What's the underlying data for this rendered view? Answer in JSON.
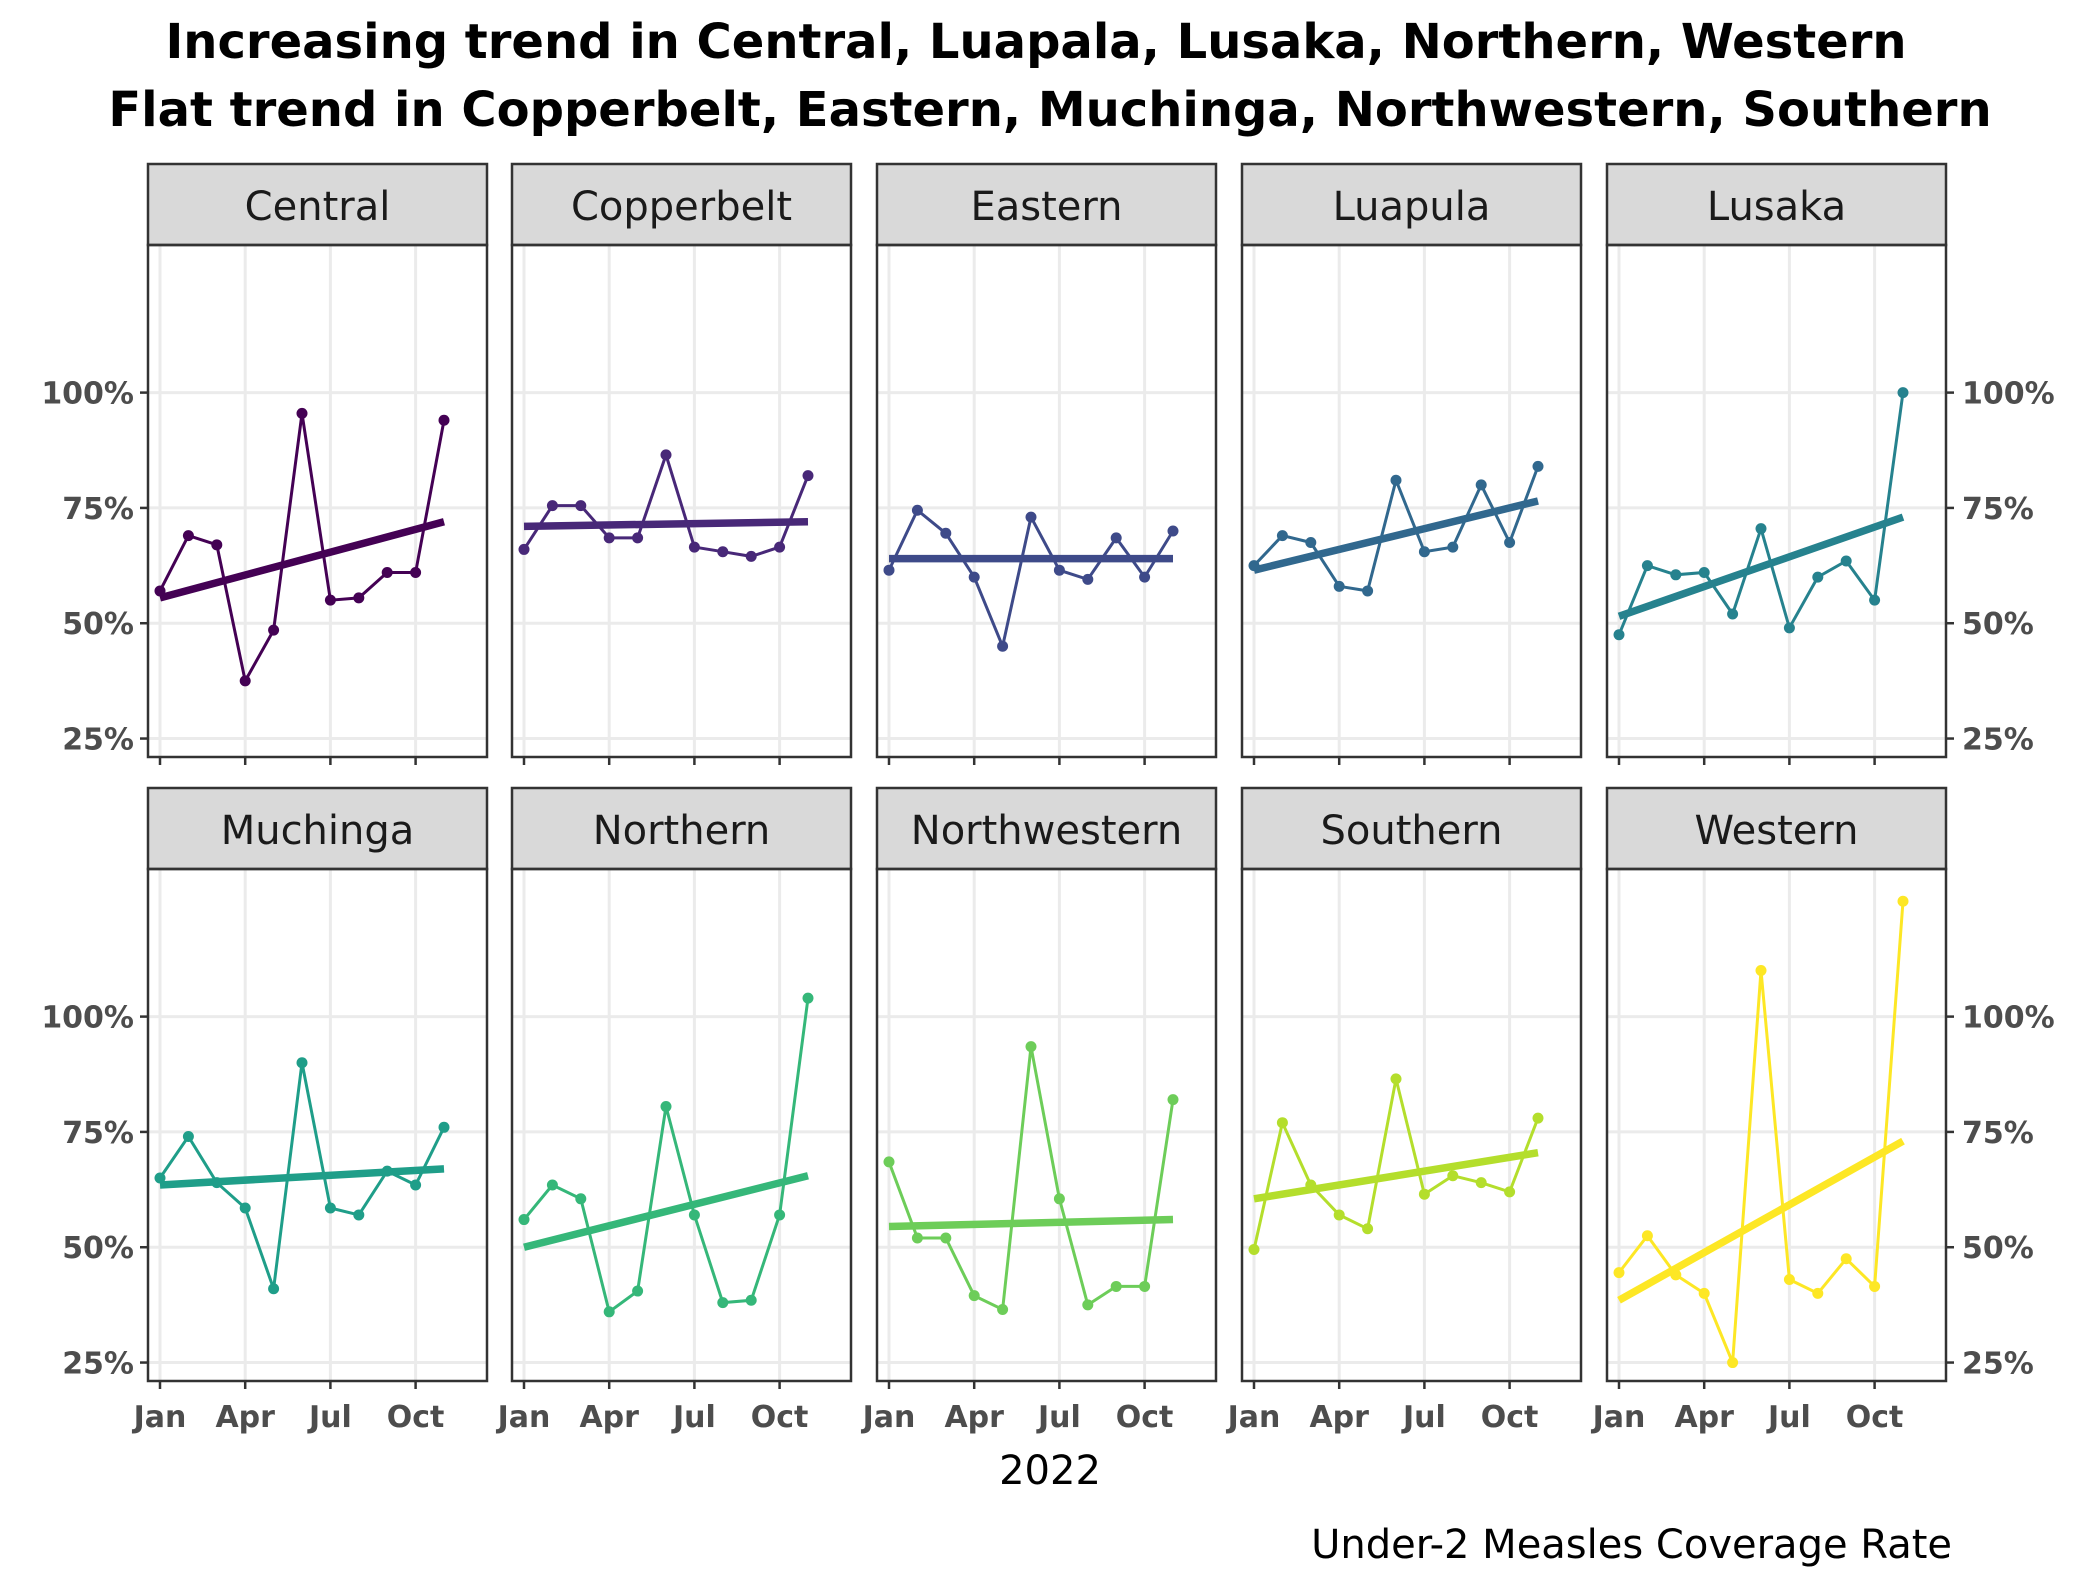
{
  "chart_data": {
    "type": "line",
    "title_line1": "Increasing trend in Central, Luapala, Lusaka, Northern, Western",
    "title_line2": "Flat trend in Copperbelt, Eastern, Muchinga, Northwestern, Southern",
    "xlabel": "2022",
    "caption": "Under-2 Measles Coverage Rate",
    "x_ticks": [
      "Jan",
      "Apr",
      "Jul",
      "Oct"
    ],
    "x_months": [
      "Jan",
      "Feb",
      "Mar",
      "Apr",
      "May",
      "Jun",
      "Jul",
      "Aug",
      "Sep",
      "Oct",
      "Nov"
    ],
    "y_ticks": [
      "25%",
      "50%",
      "75%",
      "100%"
    ],
    "ylim": [
      21,
      132
    ],
    "grid": true,
    "panels": [
      {
        "name": "Central",
        "color": "#440154",
        "values": [
          57,
          69,
          67,
          37.5,
          48.5,
          95.5,
          55,
          55.5,
          61,
          61,
          94
        ],
        "trend": [
          55.5,
          72
        ]
      },
      {
        "name": "Copperbelt",
        "color": "#482878",
        "values": [
          66,
          75.5,
          75.5,
          68.5,
          68.5,
          86.5,
          66.5,
          65.5,
          64.5,
          66.5,
          82
        ],
        "trend": [
          71,
          72
        ]
      },
      {
        "name": "Eastern",
        "color": "#3E4A89",
        "values": [
          61.5,
          74.5,
          69.5,
          60,
          45,
          73,
          61.5,
          59.5,
          68.5,
          60,
          70
        ],
        "trend": [
          64,
          64
        ]
      },
      {
        "name": "Luapula",
        "color": "#31688E",
        "values": [
          62.5,
          69,
          67.5,
          58,
          57,
          81,
          65.5,
          66.5,
          80,
          67.5,
          84
        ],
        "trend": [
          61.5,
          76.5
        ]
      },
      {
        "name": "Lusaka",
        "color": "#26828E",
        "values": [
          47.5,
          62.5,
          60.5,
          61,
          52,
          70.5,
          49,
          60,
          63.5,
          55,
          100
        ],
        "trend": [
          51.5,
          73
        ]
      },
      {
        "name": "Muchinga",
        "color": "#1F9E89",
        "values": [
          65,
          74,
          64,
          58.5,
          41,
          90,
          58.5,
          57,
          66.5,
          63.5,
          76
        ],
        "trend": [
          63.5,
          67
        ]
      },
      {
        "name": "Northern",
        "color": "#35B779",
        "values": [
          56,
          63.5,
          60.5,
          36,
          40.5,
          80.5,
          57,
          38,
          38.5,
          57,
          104
        ],
        "trend": [
          50,
          65.5
        ]
      },
      {
        "name": "Northwestern",
        "color": "#6DCD59",
        "values": [
          68.5,
          52,
          52,
          39.5,
          36.5,
          93.5,
          60.5,
          37.5,
          41.5,
          41.5,
          82
        ],
        "trend": [
          54.5,
          56
        ]
      },
      {
        "name": "Southern",
        "color": "#B4DE2C",
        "values": [
          49.5,
          77,
          63.5,
          57,
          54,
          86.5,
          61.5,
          65.5,
          64,
          62,
          78
        ],
        "trend": [
          60.5,
          70.5
        ]
      },
      {
        "name": "Western",
        "color": "#FDE725",
        "values": [
          44.5,
          52.5,
          44,
          40,
          25,
          110,
          43,
          40,
          47.5,
          41.5,
          125
        ],
        "trend": [
          38.5,
          73
        ]
      }
    ]
  }
}
